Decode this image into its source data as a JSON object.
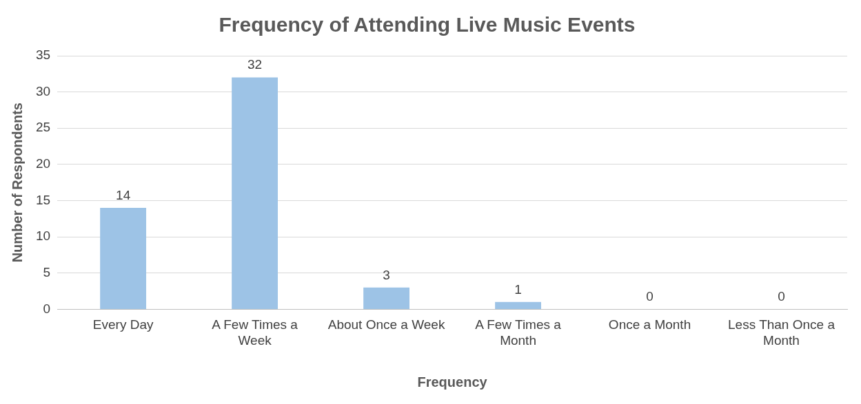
{
  "chart_data": {
    "type": "bar",
    "title": "Frequency of Attending Live Music Events",
    "xlabel": "Frequency",
    "ylabel": "Number of Respondents",
    "categories": [
      "Every Day",
      "A Few Times a Week",
      "About Once a Week",
      "A Few Times a Month",
      "Once a Month",
      "Less Than Once a Month"
    ],
    "values": [
      14,
      32,
      3,
      1,
      0,
      0
    ],
    "color": "#9dc3e6",
    "ylim": [
      0,
      35
    ],
    "yticks": [
      0,
      5,
      10,
      15,
      20,
      25,
      30,
      35
    ],
    "grid": "y",
    "legend": false,
    "data_labels": true
  }
}
